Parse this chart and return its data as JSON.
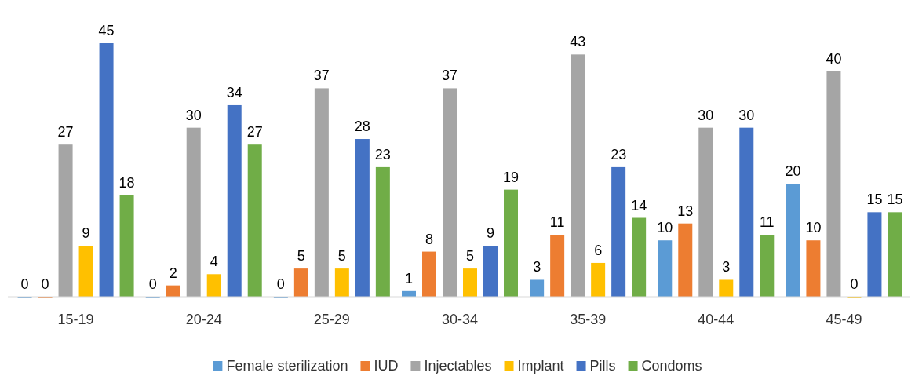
{
  "chart_data": {
    "type": "bar",
    "categories": [
      "15-19",
      "20-24",
      "25-29",
      "30-34",
      "35-39",
      "40-44",
      "45-49"
    ],
    "series": [
      {
        "name": "Female sterilization",
        "color": "#5b9bd5",
        "values": [
          0,
          0,
          0,
          1,
          3,
          10,
          20
        ]
      },
      {
        "name": "IUD",
        "color": "#ed7d31",
        "values": [
          0,
          2,
          5,
          8,
          11,
          13,
          10
        ]
      },
      {
        "name": "Injectables",
        "color": "#a5a5a5",
        "values": [
          27,
          30,
          37,
          37,
          43,
          30,
          40
        ]
      },
      {
        "name": "Implant",
        "color": "#ffc000",
        "values": [
          9,
          4,
          5,
          5,
          6,
          3,
          0
        ]
      },
      {
        "name": "Pills",
        "color": "#4472c4",
        "values": [
          45,
          34,
          28,
          9,
          23,
          30,
          15
        ]
      },
      {
        "name": "Condoms",
        "color": "#70ad47",
        "values": [
          18,
          27,
          23,
          19,
          14,
          11,
          15
        ]
      }
    ],
    "data_labels": true,
    "grid": false,
    "legend": "bottom"
  }
}
